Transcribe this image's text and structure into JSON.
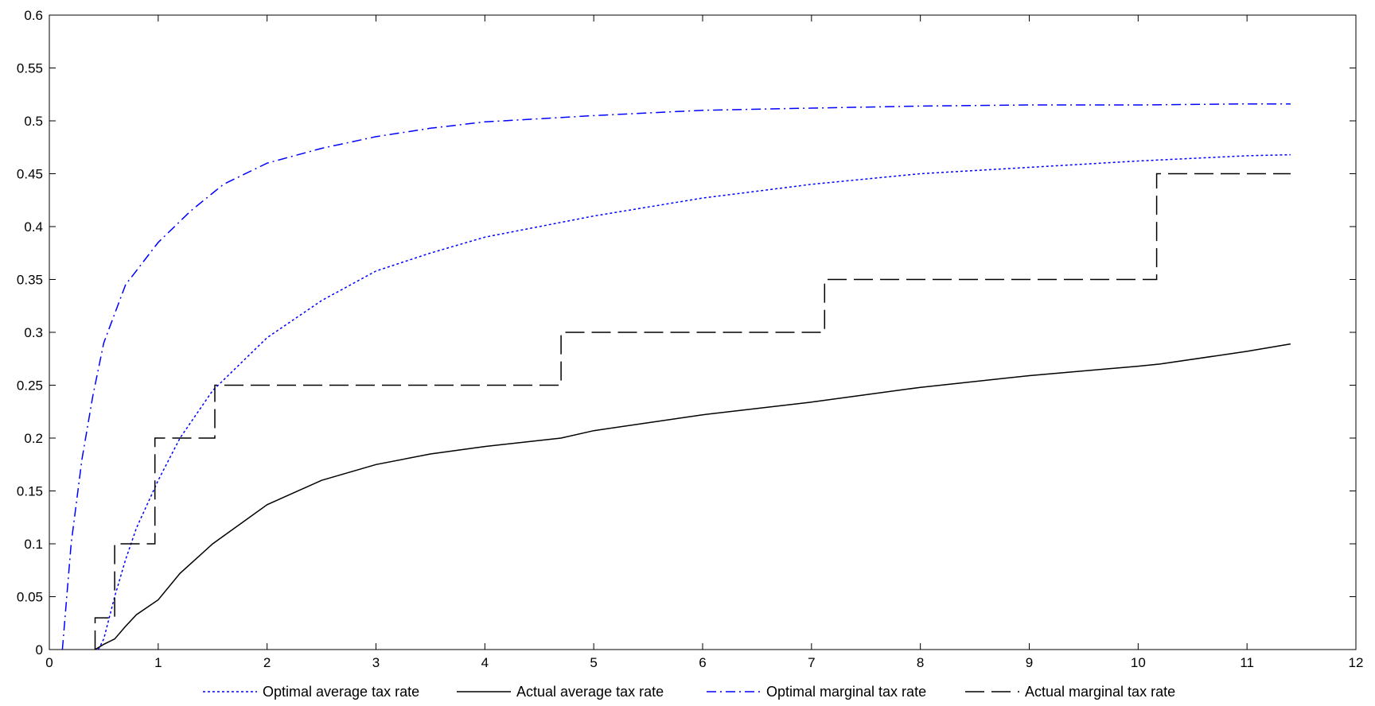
{
  "chart_data": {
    "type": "line",
    "title": "",
    "xlabel": "",
    "ylabel": "",
    "xlim": [
      0,
      12
    ],
    "ylim": [
      0,
      0.6
    ],
    "xticks": [
      0,
      1,
      2,
      3,
      4,
      5,
      6,
      7,
      8,
      9,
      10,
      11,
      12
    ],
    "yticks": [
      0,
      0.05,
      0.1,
      0.15,
      0.2,
      0.25,
      0.3,
      0.35,
      0.4,
      0.45,
      0.5,
      0.55,
      0.6
    ],
    "xtick_labels": [
      "0",
      "1",
      "2",
      "3",
      "4",
      "5",
      "6",
      "7",
      "8",
      "9",
      "10",
      "11",
      "12"
    ],
    "ytick_labels": [
      "0",
      "0.05",
      "0.1",
      "0.15",
      "0.2",
      "0.25",
      "0.3",
      "0.35",
      "0.4",
      "0.45",
      "0.5",
      "0.55",
      "0.6"
    ],
    "grid": false,
    "legend_position": "bottom",
    "series": [
      {
        "name": "Optimal average tax rate",
        "color": "#0000ff",
        "style": "dotted",
        "x": [
          0.45,
          0.5,
          0.6,
          0.7,
          0.8,
          1.0,
          1.2,
          1.5,
          2.0,
          2.5,
          3.0,
          3.5,
          4.0,
          5.0,
          6.0,
          7.0,
          8.0,
          9.0,
          10.0,
          11.0,
          11.4
        ],
        "y": [
          0.0,
          0.01,
          0.05,
          0.085,
          0.115,
          0.16,
          0.2,
          0.245,
          0.295,
          0.33,
          0.358,
          0.375,
          0.39,
          0.41,
          0.427,
          0.44,
          0.45,
          0.456,
          0.462,
          0.467,
          0.468
        ]
      },
      {
        "name": "Actual average tax rate",
        "color": "#000000",
        "style": "solid",
        "x": [
          0.42,
          0.5,
          0.6,
          0.7,
          0.8,
          1.0,
          1.2,
          1.5,
          2.0,
          2.5,
          3.0,
          3.5,
          4.0,
          4.7,
          5.0,
          6.0,
          7.0,
          8.0,
          9.0,
          10.0,
          10.2,
          11.0,
          11.4
        ],
        "y": [
          0.0,
          0.005,
          0.01,
          0.022,
          0.033,
          0.047,
          0.072,
          0.1,
          0.137,
          0.16,
          0.175,
          0.185,
          0.192,
          0.2,
          0.207,
          0.222,
          0.234,
          0.248,
          0.259,
          0.268,
          0.27,
          0.282,
          0.289
        ]
      },
      {
        "name": "Optimal marginal tax rate",
        "color": "#0000ff",
        "style": "dashdot",
        "x": [
          0.12,
          0.2,
          0.3,
          0.4,
          0.5,
          0.7,
          1.0,
          1.3,
          1.6,
          2.0,
          2.5,
          3.0,
          3.5,
          4.0,
          5.0,
          6.0,
          7.0,
          8.0,
          9.0,
          10.0,
          11.0,
          11.4
        ],
        "y": [
          0.0,
          0.1,
          0.18,
          0.24,
          0.29,
          0.345,
          0.385,
          0.415,
          0.44,
          0.46,
          0.474,
          0.485,
          0.493,
          0.499,
          0.505,
          0.51,
          0.512,
          0.514,
          0.515,
          0.515,
          0.516,
          0.516
        ]
      },
      {
        "name": "Actual marginal tax rate",
        "color": "#000000",
        "style": "dashed",
        "x": [
          0.42,
          0.42,
          0.6,
          0.6,
          0.97,
          0.97,
          1.52,
          1.52,
          4.7,
          4.7,
          7.12,
          7.12,
          10.17,
          10.17,
          11.4
        ],
        "y": [
          0.0,
          0.03,
          0.03,
          0.1,
          0.1,
          0.2,
          0.2,
          0.25,
          0.25,
          0.3,
          0.3,
          0.35,
          0.35,
          0.45,
          0.45
        ]
      }
    ]
  }
}
